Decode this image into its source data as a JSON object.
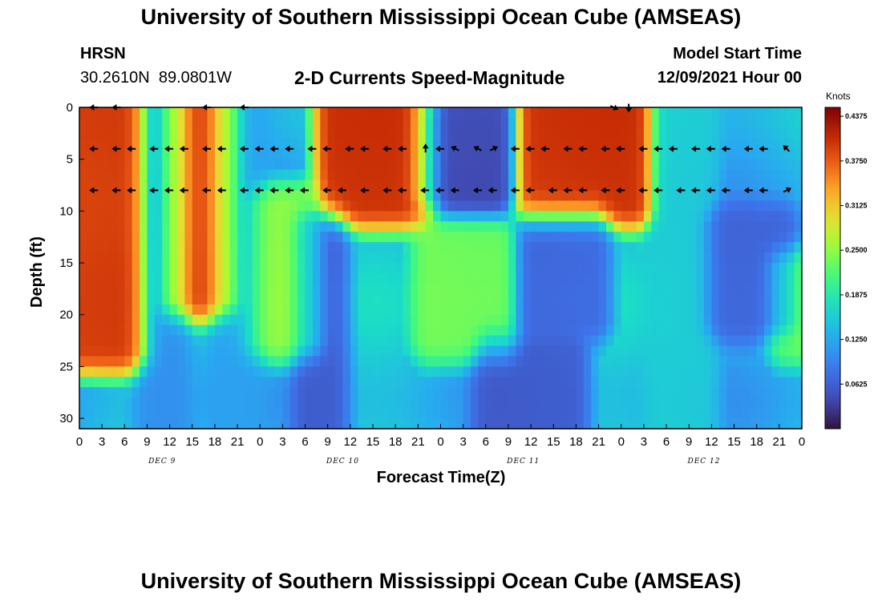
{
  "page_title": "University of Southern Mississippi Ocean Cube (AMSEAS)",
  "footer_title": "University of Southern Mississippi Ocean Cube (AMSEAS)",
  "station": {
    "name": "HRSN",
    "lat": "30.2610N",
    "lon": "89.0801W"
  },
  "model_start": {
    "label": "Model Start Time",
    "value": "12/09/2021 Hour 00"
  },
  "chart_data": {
    "type": "heatmap",
    "title": "2-D Currents Speed-Magnitude",
    "xlabel": "Forecast Time(Z)",
    "ylabel": "Depth (ft)",
    "colorbar_label": "Knots",
    "colorbar_ticks": [
      "0.4375",
      "0.3750",
      "0.3125",
      "0.2500",
      "0.1875",
      "0.1250",
      "0.0625"
    ],
    "colorbar_values": [
      0.4375,
      0.375,
      0.3125,
      0.25,
      0.1875,
      0.125,
      0.0625
    ],
    "colorbar_range": [
      0.0,
      0.45
    ],
    "xlim": [
      0,
      96
    ],
    "ylim": [
      0,
      31
    ],
    "x_ticks": [
      0,
      3,
      6,
      9,
      12,
      15,
      18,
      21,
      24,
      27,
      30,
      33,
      36,
      39,
      42,
      45,
      48,
      51,
      54,
      57,
      60,
      63,
      66,
      69,
      72,
      75,
      78,
      81,
      84,
      87,
      90,
      93,
      96
    ],
    "x_tick_labels": [
      "0",
      "3",
      "6",
      "9",
      "12",
      "15",
      "18",
      "21",
      "0",
      "3",
      "6",
      "9",
      "12",
      "15",
      "18",
      "21",
      "0",
      "3",
      "6",
      "9",
      "12",
      "15",
      "18",
      "21",
      "0",
      "3",
      "6",
      "9",
      "12",
      "15",
      "18",
      "21",
      "0"
    ],
    "y_ticks": [
      0,
      5,
      10,
      15,
      20,
      25,
      30
    ],
    "y_tick_labels": [
      "0",
      "5",
      "10",
      "15",
      "20",
      "25",
      "30"
    ],
    "day_labels": [
      {
        "label": "DEC 9",
        "hour": 11
      },
      {
        "label": "DEC 10",
        "hour": 35
      },
      {
        "label": "DEC 11",
        "hour": 59
      },
      {
        "label": "DEC 12",
        "hour": 83
      }
    ],
    "speed_blobs": [
      {
        "h0": 0,
        "h1": 7,
        "d0": 0,
        "d1": 23,
        "v": 0.43
      },
      {
        "h0": 13,
        "h1": 19,
        "d0": 0,
        "d1": 18,
        "v": 0.43
      },
      {
        "h0": 34,
        "h1": 45,
        "d0": 0,
        "d1": 9,
        "v": 0.44
      },
      {
        "h0": 60,
        "h1": 74,
        "d0": 0,
        "d1": 9,
        "v": 0.44
      },
      {
        "h0": 24,
        "h1": 30,
        "d0": 10,
        "d1": 22,
        "v": 0.27
      },
      {
        "h0": 47,
        "h1": 56,
        "d0": 13,
        "d1": 22,
        "v": 0.25
      },
      {
        "h0": 47,
        "h1": 56,
        "d0": 1,
        "d1": 8,
        "v": 0.03
      },
      {
        "h0": 31,
        "h1": 33,
        "d0": 12,
        "d1": 31,
        "v": 0.05
      },
      {
        "h0": 55,
        "h1": 65,
        "d0": 24,
        "d1": 31,
        "v": 0.05
      },
      {
        "h0": 60,
        "h1": 68,
        "d0": 12,
        "d1": 20,
        "v": 0.06
      },
      {
        "h0": 85,
        "h1": 93,
        "d0": 12,
        "d1": 20,
        "v": 0.06
      },
      {
        "h0": 10,
        "h1": 12,
        "d0": 0,
        "d1": 31,
        "v": 0.1
      },
      {
        "h0": 20,
        "h1": 22,
        "d0": 0,
        "d1": 31,
        "v": 0.12
      },
      {
        "h0": 78,
        "h1": 82,
        "d0": 0,
        "d1": 31,
        "v": 0.16
      },
      {
        "h0": 94,
        "h1": 96,
        "d0": 16,
        "d1": 22,
        "v": 0.25
      }
    ],
    "vectors": [
      {
        "hour": 2,
        "depth": 0,
        "u": -1,
        "v": 0
      },
      {
        "hour": 5,
        "depth": 0,
        "u": -1,
        "v": 0
      },
      {
        "hour": 17,
        "depth": 0,
        "u": -1,
        "v": 0
      },
      {
        "hour": 22,
        "depth": 0,
        "u": -1,
        "v": 0
      },
      {
        "hour": 71,
        "depth": 0,
        "u": 1,
        "v": -0.5
      },
      {
        "hour": 73,
        "depth": 0,
        "u": 0,
        "v": -1
      },
      {
        "hour": 2,
        "depth": 4,
        "u": -1,
        "v": 0
      },
      {
        "hour": 5,
        "depth": 4,
        "u": -1,
        "v": 0
      },
      {
        "hour": 7,
        "depth": 4,
        "u": -1,
        "v": 0
      },
      {
        "hour": 10,
        "depth": 4,
        "u": -1,
        "v": 0
      },
      {
        "hour": 12,
        "depth": 4,
        "u": -1,
        "v": 0
      },
      {
        "hour": 14,
        "depth": 4,
        "u": -1,
        "v": 0
      },
      {
        "hour": 17,
        "depth": 4,
        "u": -1,
        "v": 0
      },
      {
        "hour": 19,
        "depth": 4,
        "u": -1,
        "v": 0
      },
      {
        "hour": 22,
        "depth": 4,
        "u": -1,
        "v": 0
      },
      {
        "hour": 24,
        "depth": 4,
        "u": -1,
        "v": 0
      },
      {
        "hour": 26,
        "depth": 4,
        "u": -1,
        "v": 0
      },
      {
        "hour": 28,
        "depth": 4,
        "u": -1,
        "v": 0
      },
      {
        "hour": 31,
        "depth": 4,
        "u": -1,
        "v": 0
      },
      {
        "hour": 33,
        "depth": 4,
        "u": -1,
        "v": 0
      },
      {
        "hour": 36,
        "depth": 4,
        "u": -1,
        "v": 0
      },
      {
        "hour": 38,
        "depth": 4,
        "u": -1,
        "v": 0
      },
      {
        "hour": 41,
        "depth": 4,
        "u": -1,
        "v": 0
      },
      {
        "hour": 43,
        "depth": 4,
        "u": -1,
        "v": 0
      },
      {
        "hour": 46,
        "depth": 4,
        "u": 0,
        "v": 1
      },
      {
        "hour": 48,
        "depth": 4,
        "u": -1,
        "v": 0
      },
      {
        "hour": 50,
        "depth": 4,
        "u": -1,
        "v": 0.5
      },
      {
        "hour": 53,
        "depth": 4,
        "u": -1,
        "v": 0.5
      },
      {
        "hour": 55,
        "depth": 4,
        "u": 1,
        "v": 0.5
      },
      {
        "hour": 58,
        "depth": 4,
        "u": -1,
        "v": 0
      },
      {
        "hour": 60,
        "depth": 4,
        "u": -1,
        "v": 0
      },
      {
        "hour": 62,
        "depth": 4,
        "u": -1,
        "v": 0
      },
      {
        "hour": 65,
        "depth": 4,
        "u": -1,
        "v": 0
      },
      {
        "hour": 67,
        "depth": 4,
        "u": -1,
        "v": 0
      },
      {
        "hour": 70,
        "depth": 4,
        "u": -1,
        "v": 0
      },
      {
        "hour": 72,
        "depth": 4,
        "u": -1,
        "v": 0
      },
      {
        "hour": 75,
        "depth": 4,
        "u": -1,
        "v": 0
      },
      {
        "hour": 77,
        "depth": 4,
        "u": -1,
        "v": 0
      },
      {
        "hour": 79,
        "depth": 4,
        "u": -1,
        "v": 0
      },
      {
        "hour": 82,
        "depth": 4,
        "u": -1,
        "v": 0
      },
      {
        "hour": 84,
        "depth": 4,
        "u": -1,
        "v": 0
      },
      {
        "hour": 86,
        "depth": 4,
        "u": -1,
        "v": 0
      },
      {
        "hour": 89,
        "depth": 4,
        "u": -1,
        "v": 0
      },
      {
        "hour": 91,
        "depth": 4,
        "u": -1,
        "v": 0
      },
      {
        "hour": 94,
        "depth": 4,
        "u": -1,
        "v": 1
      },
      {
        "hour": 2,
        "depth": 8,
        "u": -1,
        "v": 0
      },
      {
        "hour": 5,
        "depth": 8,
        "u": -1,
        "v": 0
      },
      {
        "hour": 7,
        "depth": 8,
        "u": -1,
        "v": 0
      },
      {
        "hour": 10,
        "depth": 8,
        "u": -1,
        "v": 0
      },
      {
        "hour": 12,
        "depth": 8,
        "u": -1,
        "v": 0
      },
      {
        "hour": 14,
        "depth": 8,
        "u": -1,
        "v": 0
      },
      {
        "hour": 17,
        "depth": 8,
        "u": -1,
        "v": 0
      },
      {
        "hour": 19,
        "depth": 8,
        "u": -1,
        "v": 0
      },
      {
        "hour": 22,
        "depth": 8,
        "u": -1,
        "v": 0
      },
      {
        "hour": 24,
        "depth": 8,
        "u": -1,
        "v": 0
      },
      {
        "hour": 26,
        "depth": 8,
        "u": -1,
        "v": 0
      },
      {
        "hour": 28,
        "depth": 8,
        "u": -1,
        "v": 0
      },
      {
        "hour": 30,
        "depth": 8,
        "u": -1,
        "v": 0
      },
      {
        "hour": 33,
        "depth": 8,
        "u": -1,
        "v": 0
      },
      {
        "hour": 35,
        "depth": 8,
        "u": -1,
        "v": 0
      },
      {
        "hour": 38,
        "depth": 8,
        "u": -1,
        "v": 0
      },
      {
        "hour": 41,
        "depth": 8,
        "u": -1,
        "v": 0
      },
      {
        "hour": 43,
        "depth": 8,
        "u": -1,
        "v": 0
      },
      {
        "hour": 46,
        "depth": 8,
        "u": -1,
        "v": 0
      },
      {
        "hour": 48,
        "depth": 8,
        "u": -1,
        "v": 0
      },
      {
        "hour": 50,
        "depth": 8,
        "u": -1,
        "v": 0
      },
      {
        "hour": 53,
        "depth": 8,
        "u": -1,
        "v": 0
      },
      {
        "hour": 55,
        "depth": 8,
        "u": -1,
        "v": 0
      },
      {
        "hour": 58,
        "depth": 8,
        "u": -1,
        "v": 0
      },
      {
        "hour": 60,
        "depth": 8,
        "u": -1,
        "v": 0
      },
      {
        "hour": 63,
        "depth": 8,
        "u": -1,
        "v": 0
      },
      {
        "hour": 65,
        "depth": 8,
        "u": -1,
        "v": 0
      },
      {
        "hour": 67,
        "depth": 8,
        "u": -1,
        "v": 0
      },
      {
        "hour": 70,
        "depth": 8,
        "u": -1,
        "v": 0
      },
      {
        "hour": 72,
        "depth": 8,
        "u": -1,
        "v": 0
      },
      {
        "hour": 75,
        "depth": 8,
        "u": -1,
        "v": 0
      },
      {
        "hour": 77,
        "depth": 8,
        "u": -1,
        "v": 0
      },
      {
        "hour": 80,
        "depth": 8,
        "u": -1,
        "v": 0
      },
      {
        "hour": 82,
        "depth": 8,
        "u": -1,
        "v": 0
      },
      {
        "hour": 84,
        "depth": 8,
        "u": -1,
        "v": 0
      },
      {
        "hour": 86,
        "depth": 8,
        "u": -1,
        "v": 0
      },
      {
        "hour": 89,
        "depth": 8,
        "u": -1,
        "v": 0
      },
      {
        "hour": 91,
        "depth": 8,
        "u": -1,
        "v": 0
      },
      {
        "hour": 94,
        "depth": 8,
        "u": 1,
        "v": 0.5
      }
    ]
  }
}
